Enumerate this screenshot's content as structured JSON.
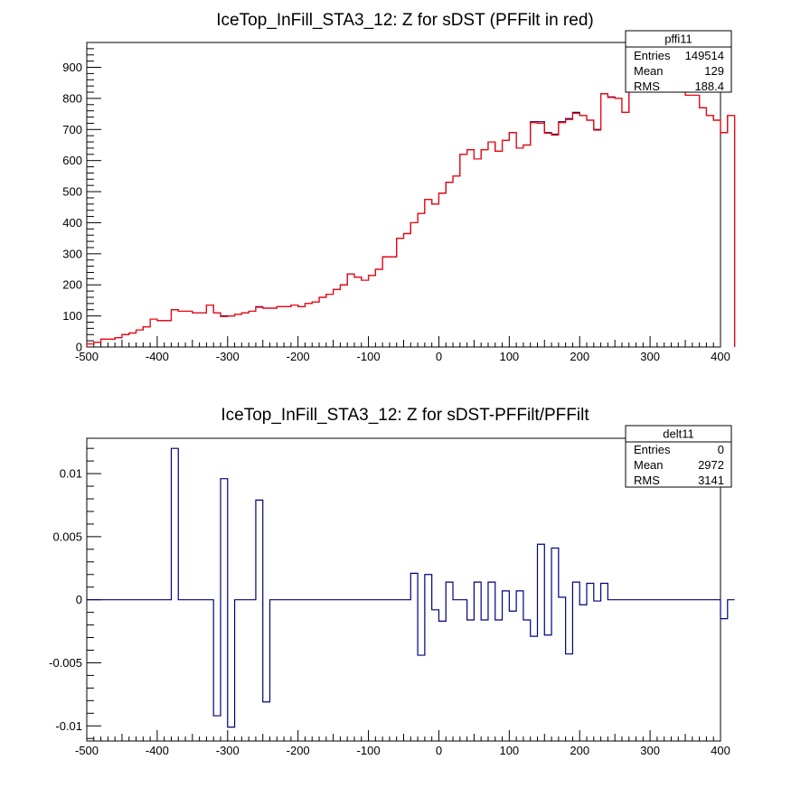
{
  "chart_data": [
    {
      "type": "histogram",
      "title": "IceTop_InFill_STA3_12: Z for sDST (PFFilt in red)",
      "xlim": [
        -500,
        400
      ],
      "ylim": [
        0,
        980
      ],
      "x_ticks": [
        -500,
        -400,
        -300,
        -200,
        -100,
        0,
        100,
        200,
        300,
        400
      ],
      "y_ticks": [
        0,
        100,
        200,
        300,
        400,
        500,
        600,
        700,
        800,
        900
      ],
      "bin_width": 10,
      "series": [
        {
          "color": "#000080",
          "values": [
            10,
            15,
            25,
            25,
            30,
            40,
            45,
            55,
            65,
            90,
            85,
            85,
            120,
            115,
            115,
            110,
            110,
            135,
            110,
            100,
            100,
            105,
            110,
            115,
            130,
            125,
            125,
            130,
            130,
            135,
            130,
            140,
            145,
            160,
            170,
            185,
            200,
            235,
            225,
            215,
            230,
            250,
            290,
            290,
            350,
            365,
            400,
            430,
            475,
            460,
            495,
            530,
            550,
            620,
            635,
            605,
            635,
            660,
            630,
            665,
            690,
            640,
            650,
            725,
            725,
            690,
            685,
            725,
            735,
            755,
            745,
            730,
            700,
            815,
            805,
            800,
            755,
            870,
            850,
            855,
            870,
            865,
            905,
            850,
            850,
            810,
            810,
            770,
            745,
            730,
            690,
            745
          ]
        },
        {
          "color": "#ff0000",
          "values": [
            10,
            15,
            25,
            25,
            30,
            40,
            45,
            55,
            65,
            90,
            85,
            85,
            120,
            115,
            115,
            110,
            110,
            135,
            110,
            98,
            100,
            105,
            110,
            115,
            128,
            125,
            125,
            130,
            130,
            135,
            130,
            140,
            145,
            160,
            170,
            185,
            200,
            235,
            225,
            215,
            230,
            250,
            290,
            290,
            350,
            365,
            400,
            430,
            475,
            460,
            495,
            530,
            550,
            620,
            635,
            605,
            635,
            660,
            630,
            665,
            690,
            640,
            650,
            722,
            720,
            688,
            682,
            722,
            732,
            752,
            745,
            730,
            698,
            815,
            803,
            800,
            755,
            870,
            850,
            855,
            870,
            865,
            905,
            850,
            850,
            810,
            810,
            770,
            745,
            730,
            690,
            745
          ]
        }
      ]
    },
    {
      "type": "histogram",
      "title": "IceTop_InFill_STA3_12: Z for sDST-PFFilt/PFFilt",
      "xlim": [
        -500,
        400
      ],
      "ylim": [
        -0.0112,
        0.0128
      ],
      "x_ticks": [
        -500,
        -400,
        -300,
        -200,
        -100,
        0,
        100,
        200,
        300,
        400
      ],
      "y_ticks": [
        -0.01,
        -0.005,
        0,
        0.005,
        0.01
      ],
      "y_tick_labels": [
        "-0.01",
        "-0.005",
        "0",
        "0.005",
        "0.01"
      ],
      "bin_width": 10,
      "series": [
        {
          "color": "#000080",
          "values": [
            0,
            0,
            0,
            0,
            0,
            0,
            0,
            0,
            0,
            0,
            0,
            0,
            0.012,
            0,
            0,
            0,
            0,
            0,
            -0.0092,
            0.0096,
            -0.0101,
            0,
            0,
            0,
            0.0079,
            -0.0081,
            0,
            0,
            0,
            0,
            0,
            0,
            0,
            0,
            0,
            0,
            0,
            0,
            0,
            0,
            0,
            0,
            0,
            0,
            0,
            0,
            0.0021,
            -0.0044,
            0.002,
            -0.0008,
            -0.0017,
            0.0014,
            0,
            0,
            -0.0016,
            0.0014,
            -0.0016,
            0.0014,
            -0.0016,
            0.0007,
            -0.0009,
            0.0007,
            -0.0016,
            -0.0029,
            0.0044,
            -0.0028,
            0.0041,
            0.0002,
            -0.0043,
            0.0014,
            -0.0004,
            0.0013,
            -0.0001,
            0.0013,
            0,
            0,
            0,
            0,
            0,
            0,
            0,
            0,
            0,
            0,
            0,
            0,
            0,
            0,
            0,
            0,
            -0.0015,
            0
          ]
        }
      ]
    }
  ],
  "stats_boxes": [
    {
      "name": "pffi11",
      "rows": [
        {
          "label": "Entries",
          "value": "149514"
        },
        {
          "label": "Mean",
          "value": "129"
        },
        {
          "label": "RMS",
          "value": "188.4"
        }
      ]
    },
    {
      "name": "delt11",
      "rows": [
        {
          "label": "Entries",
          "value": "0"
        },
        {
          "label": "Mean",
          "value": "2972"
        },
        {
          "label": "RMS",
          "value": "3141"
        }
      ]
    }
  ]
}
